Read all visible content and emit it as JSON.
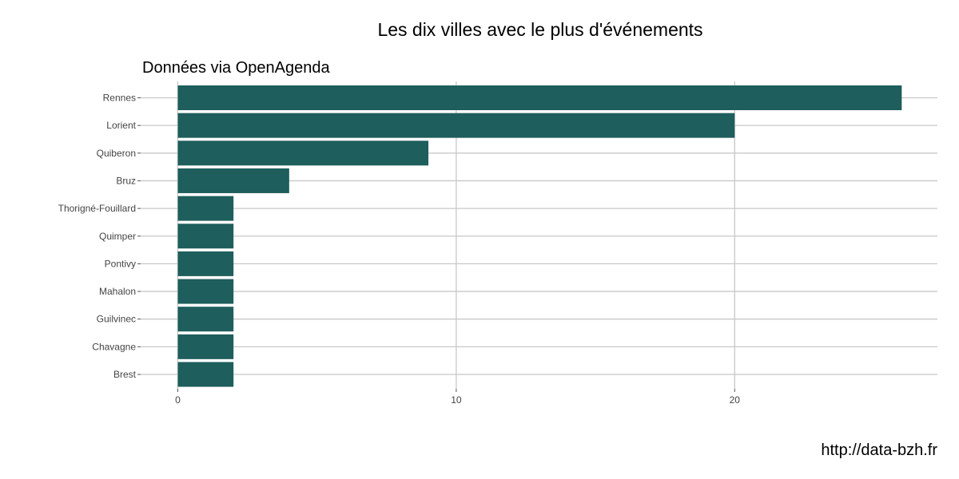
{
  "chart_data": {
    "type": "bar",
    "orientation": "horizontal",
    "title": "Les dix villes avec le plus d'événements",
    "subtitle": "Données via OpenAgenda",
    "caption": "http://data-bzh.fr",
    "xlabel": "",
    "ylabel": "",
    "categories": [
      "Rennes",
      "Lorient",
      "Quiberon",
      "Bruz",
      "Thorigné-Fouillard",
      "Quimper",
      "Pontivy",
      "Mahalon",
      "Guilvinec",
      "Chavagne",
      "Brest"
    ],
    "values": [
      26,
      20,
      9,
      4,
      2,
      2,
      2,
      2,
      2,
      2,
      2
    ],
    "xlim": [
      0,
      27.3
    ],
    "x_ticks": [
      0,
      10,
      20
    ],
    "x_tick_labels": [
      "0",
      "10",
      "20"
    ],
    "bar_color": "#1e5e5c",
    "grid": true,
    "legend": "none"
  }
}
